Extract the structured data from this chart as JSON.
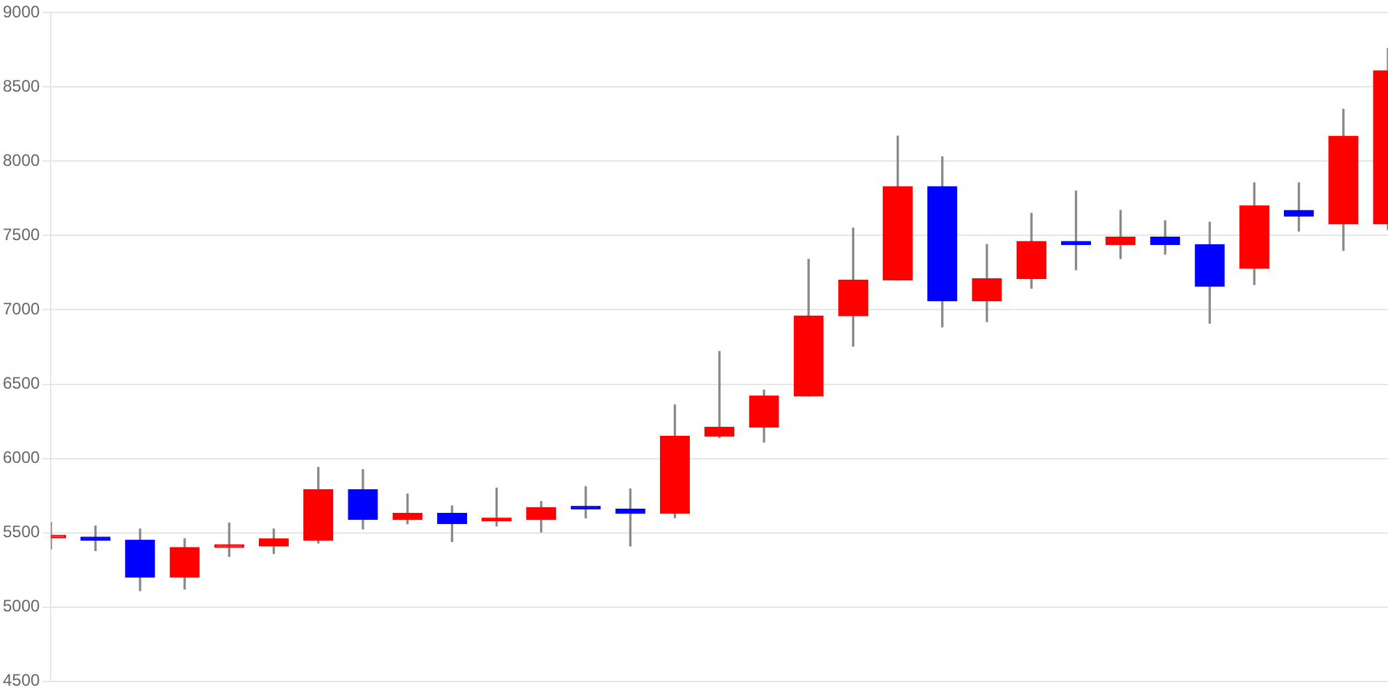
{
  "chart_data": {
    "type": "candlestick",
    "categories": [
      null,
      null,
      null,
      null,
      null,
      null,
      null,
      null,
      null,
      null,
      null,
      null,
      null,
      null,
      null,
      null,
      null,
      null,
      null,
      null,
      null,
      null,
      null,
      null,
      null,
      null,
      null,
      null,
      null,
      null,
      null
    ],
    "ohlc": [
      [
        5465,
        5570,
        5390,
        5470
      ],
      [
        5470,
        5545,
        5380,
        5450
      ],
      [
        5450,
        5525,
        5110,
        5200
      ],
      [
        5200,
        5460,
        5120,
        5400
      ],
      [
        5400,
        5565,
        5340,
        5410
      ],
      [
        5410,
        5525,
        5360,
        5460
      ],
      [
        5450,
        5940,
        5430,
        5790
      ],
      [
        5790,
        5925,
        5525,
        5590
      ],
      [
        5590,
        5760,
        5560,
        5630
      ],
      [
        5630,
        5680,
        5440,
        5560
      ],
      [
        5580,
        5800,
        5545,
        5590
      ],
      [
        5590,
        5710,
        5505,
        5670
      ],
      [
        5670,
        5810,
        5600,
        5660
      ],
      [
        5660,
        5795,
        5410,
        5630
      ],
      [
        5630,
        6360,
        5600,
        6150
      ],
      [
        6150,
        6720,
        6140,
        6210
      ],
      [
        6210,
        6460,
        6110,
        6420
      ],
      [
        6420,
        7340,
        6420,
        6960
      ],
      [
        6960,
        7550,
        6755,
        7200
      ],
      [
        7200,
        8170,
        7200,
        7830
      ],
      [
        7830,
        8030,
        6885,
        7060
      ],
      [
        7060,
        7440,
        6920,
        7210
      ],
      [
        7210,
        7650,
        7145,
        7460
      ],
      [
        7460,
        7800,
        7270,
        7440
      ],
      [
        7440,
        7670,
        7345,
        7490
      ],
      [
        7490,
        7600,
        7375,
        7440
      ],
      [
        7440,
        7590,
        6910,
        7160
      ],
      [
        7280,
        7855,
        7170,
        7700
      ],
      [
        7670,
        7855,
        7530,
        7630
      ],
      [
        7580,
        8350,
        7400,
        8170
      ],
      [
        7580,
        8760,
        7540,
        8610
      ]
    ],
    "colors": [
      "#ff0000",
      "#0000ff",
      "#0000ff",
      "#ff0000",
      "#ff0000",
      "#ff0000",
      "#ff0000",
      "#0000ff",
      "#ff0000",
      "#0000ff",
      "#ff0000",
      "#ff0000",
      "#0000ff",
      "#0000ff",
      "#ff0000",
      "#ff0000",
      "#ff0000",
      "#ff0000",
      "#ff0000",
      "#ff0000",
      "#0000ff",
      "#ff0000",
      "#ff0000",
      "#0000ff",
      "#ff0000",
      "#0000ff",
      "#0000ff",
      "#ff0000",
      "#0000ff",
      "#ff0000",
      "#ff0000"
    ],
    "ylim": [
      4500,
      9000
    ],
    "yticks": [
      4500,
      5000,
      5500,
      6000,
      6500,
      7000,
      7500,
      8000,
      8500,
      9000
    ],
    "grid": "y",
    "legend": false,
    "tick_labels": "y"
  }
}
